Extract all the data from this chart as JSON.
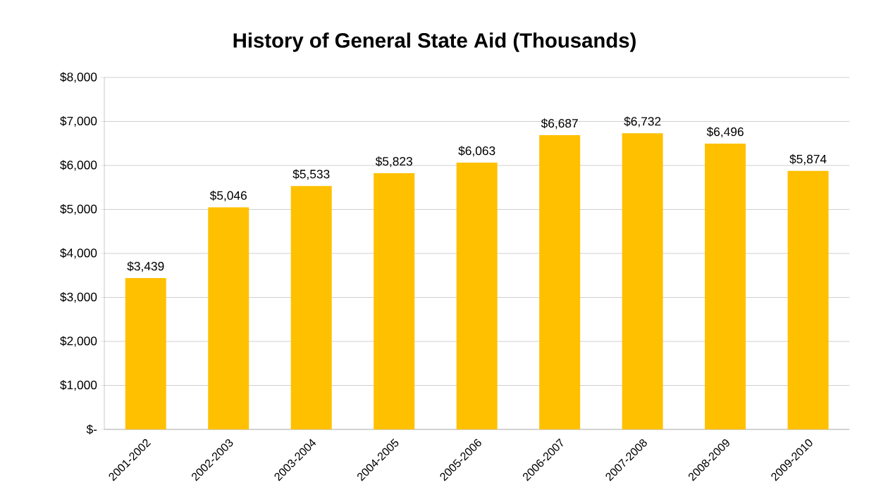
{
  "chart_data": {
    "type": "bar",
    "title": "History of General State Aid **(Thousands)**",
    "categories": [
      "2001-2002",
      "2002-2003",
      "2003-2004",
      "2004-2005",
      "2005-2006",
      "2006-2007",
      "2007-2008",
      "2008-2009",
      "2009-2010"
    ],
    "values": [
      3439,
      5046,
      5533,
      5823,
      6063,
      6687,
      6732,
      6496,
      5874
    ],
    "value_labels": [
      "$3,439",
      "$5,046",
      "$5,533",
      "$5,823",
      "$6,063",
      "$6,687",
      "$6,732",
      "$6,496",
      "$5,874"
    ],
    "color": "#ffc000",
    "ylim": [
      0,
      8000
    ],
    "yticks": [
      {
        "value": 0,
        "label": "$-"
      },
      {
        "value": 1000,
        "label": "$1,000"
      },
      {
        "value": 2000,
        "label": "$2,000"
      },
      {
        "value": 3000,
        "label": "$3,000"
      },
      {
        "value": 4000,
        "label": "$4,000"
      },
      {
        "value": 5000,
        "label": "$5,000"
      },
      {
        "value": 6000,
        "label": "$6,000"
      },
      {
        "value": 7000,
        "label": "$7,000"
      },
      {
        "value": 8000,
        "label": "$8,000"
      }
    ],
    "grid": "y"
  }
}
